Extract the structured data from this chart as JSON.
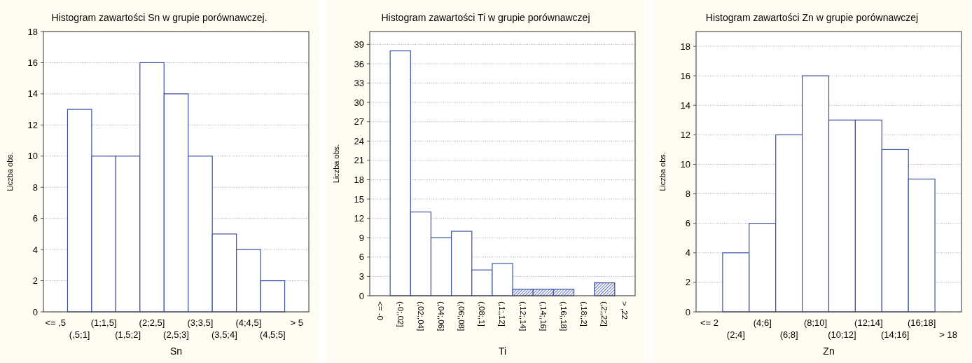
{
  "chart_data": [
    {
      "type": "bar",
      "title": "Histogram zawartości Sn w grupie porównawczej.",
      "xlabel": "Sn",
      "ylabel": "Liczba obs.",
      "categories": [
        "<= ,5",
        "(,5;1]",
        "(1;1,5]",
        "(1,5;2]",
        "(2;2,5]",
        "(2,5;3]",
        "(3;3,5]",
        "(3,5;4]",
        "(4;4,5]",
        "(4,5;5]",
        "> 5"
      ],
      "series": [
        {
          "color": "#3b52a8",
          "values": [
            0,
            13,
            10,
            10,
            16,
            14,
            10,
            5,
            4,
            2,
            0
          ]
        }
      ],
      "ylim": [
        0,
        18
      ],
      "yticks": [
        0,
        2,
        4,
        6,
        8,
        10,
        12,
        14,
        16,
        18
      ],
      "grid": "y"
    },
    {
      "type": "bar",
      "title": "Histogram zawartości Ti w grupie porównawczej",
      "xlabel": "Ti",
      "ylabel": "Liczba obs.",
      "categories": [
        "<= -0",
        "(-0;,02]",
        "(,02;,04]",
        "(,04;,06]",
        "(,06;,08]",
        "(,08;,1]",
        "(,1;,12]",
        "(,12;,14]",
        "(,14;,16]",
        "(,16;,18]",
        "(,18;,2]",
        "(,2;,22]",
        "> ,22"
      ],
      "series": [
        {
          "color": "#3b52a8",
          "colors": [
            "#ffffff",
            "#ffffff",
            "#ffffff",
            "#ffffff",
            "#ffffff",
            "#ffffff",
            "#ffffff",
            "#3b52a8",
            "#3b52a8",
            "#3b52a8",
            "#ffffff",
            "#3b52a8",
            "#ffffff"
          ],
          "values": [
            0,
            38,
            13,
            9,
            10,
            4,
            5,
            1,
            1,
            1,
            0,
            2,
            0
          ]
        }
      ],
      "ylim": [
        0,
        41
      ],
      "yticks": [
        0,
        3,
        6,
        9,
        12,
        15,
        18,
        21,
        24,
        27,
        30,
        33,
        36,
        39
      ],
      "grid": "y"
    },
    {
      "type": "bar",
      "title": "Histogram zawartości Zn w grupie porównawczej",
      "xlabel": "Zn",
      "ylabel": "Liczba obs.",
      "categories": [
        "<= 2",
        "(2;4]",
        "(4;6]",
        "(6;8]",
        "(8;10]",
        "(10;12]",
        "(12;14]",
        "(14;16]",
        "(16;18]",
        "> 18"
      ],
      "series": [
        {
          "color": "#3b52a8",
          "values": [
            0,
            4,
            6,
            12,
            16,
            13,
            13,
            11,
            9,
            0
          ]
        }
      ],
      "ylim": [
        0,
        19
      ],
      "yticks": [
        0,
        2,
        4,
        6,
        8,
        10,
        12,
        14,
        16,
        18
      ],
      "grid": "y"
    }
  ]
}
